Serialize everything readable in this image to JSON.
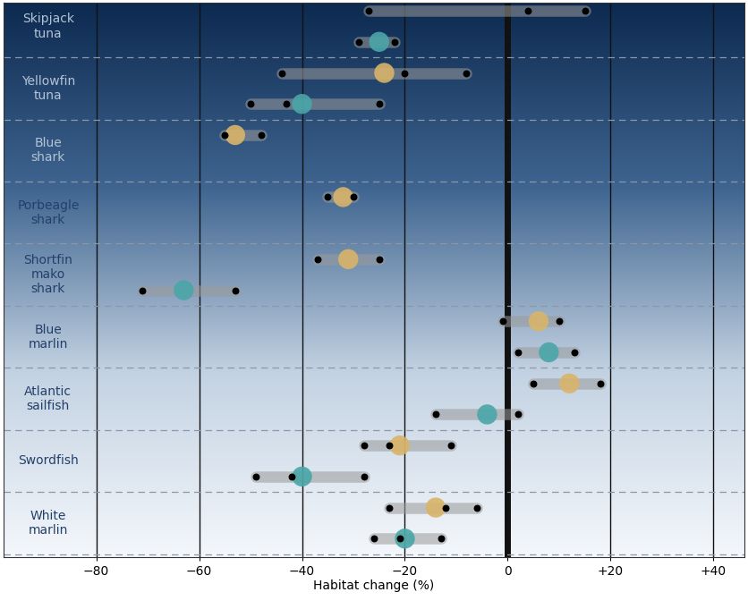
{
  "chart_data": {
    "type": "scatter",
    "x_label": "Habitat change (%)",
    "categories": [
      "Skipjack\ntuna",
      "Yellowfin\ntuna",
      "Blue\nshark",
      "Porbeagle\nshark",
      "Shortfin\nmako\nshark",
      "Blue\nmarlin",
      "Atlantic\nsailfish",
      "Swordfish",
      "White\nmarlin"
    ],
    "series": [
      {
        "color": "#d9b46a",
        "marker": "o",
        "values": [
          null,
          -24,
          -53,
          -32,
          -31,
          6,
          12,
          -21,
          -14
        ],
        "models": [
          [
            -27,
            4,
            15
          ],
          [
            -44,
            -20,
            -8
          ],
          [
            -55,
            -48
          ],
          [
            -35,
            -30
          ],
          [
            -37,
            -25
          ],
          [
            -1,
            10
          ],
          [
            5,
            18
          ],
          [
            -28,
            -23,
            -11
          ],
          [
            -23,
            -12,
            -6
          ]
        ]
      },
      {
        "color": "#4aa6a8",
        "marker": "o",
        "values": [
          -25,
          -40,
          null,
          null,
          -63,
          8,
          -4,
          -40,
          -20
        ],
        "models": [
          [
            -29,
            -22
          ],
          [
            -50,
            -43,
            -25
          ],
          [],
          [],
          [
            -71,
            -53
          ],
          [
            2,
            13
          ],
          [
            -14,
            2
          ],
          [
            -49,
            -42,
            -28
          ],
          [
            -26,
            -21,
            -13
          ]
        ]
      }
    ],
    "xlim": [
      -98,
      46
    ],
    "xticks": [
      {
        "value": -80,
        "label": "−80"
      },
      {
        "value": -60,
        "label": "−60"
      },
      {
        "value": -40,
        "label": "−40"
      },
      {
        "value": -20,
        "label": "−20"
      },
      0,
      {
        "value": 20,
        "label": "+20"
      },
      {
        "value": 40,
        "label": "+40"
      }
    ],
    "grid": true
  }
}
